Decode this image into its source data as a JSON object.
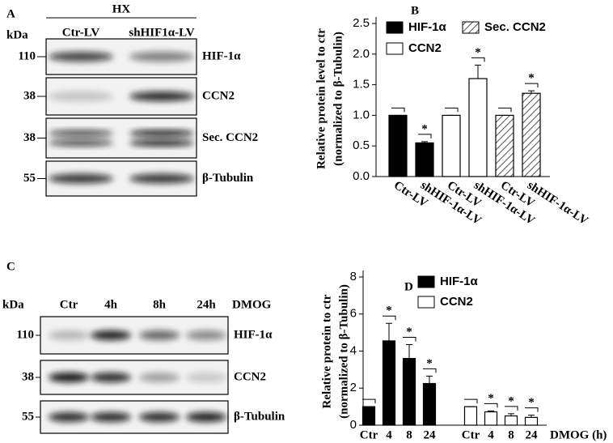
{
  "panel_a": {
    "label": "A",
    "condition": "HX",
    "kda": "kDa",
    "lanes": [
      "Ctr-LV",
      "shHIF1α-LV"
    ],
    "rows": [
      {
        "marker": "110",
        "protein": "HIF-1α"
      },
      {
        "marker": "38",
        "protein": "CCN2"
      },
      {
        "marker": "38",
        "protein": "Sec. CCN2"
      },
      {
        "marker": "55",
        "protein": "β-Tubulin"
      }
    ]
  },
  "panel_c": {
    "label": "C",
    "kda": "kDa",
    "lanes": [
      "Ctr",
      "4h",
      "8h",
      "24h"
    ],
    "treatment": "DMOG",
    "rows": [
      {
        "marker": "110",
        "protein": "HIF-1α"
      },
      {
        "marker": "38",
        "protein": "CCN2"
      },
      {
        "marker": "55",
        "protein": "β-Tubulin"
      }
    ]
  },
  "chart_data": [
    {
      "type": "bar",
      "panel": "B",
      "ylabel": [
        "Relative protein level to ctr",
        "(normalized to β-Tubulin)"
      ],
      "categories": [
        "Ctr-LV",
        "shHIF-1α-LV"
      ],
      "series": [
        {
          "name": "HIF-1α",
          "color": "#000000",
          "values": [
            1.0,
            0.55
          ],
          "errors": [
            0,
            0.02
          ],
          "significance": [
            null,
            "*"
          ]
        },
        {
          "name": "CCN2",
          "color": "#ffffff",
          "values": [
            1.0,
            1.6
          ],
          "errors": [
            0,
            0.22
          ],
          "significance": [
            null,
            "*"
          ]
        },
        {
          "name": "Sec. CCN2",
          "color": "#ffffff",
          "hatch": true,
          "values": [
            1.0,
            1.36
          ],
          "errors": [
            0,
            0.04
          ],
          "significance": [
            null,
            "*"
          ]
        }
      ],
      "ylim": [
        0,
        2.5
      ],
      "yticks": [
        {
          "value": 0,
          "label": "0.0"
        },
        {
          "value": 0.5,
          "label": "0.5"
        },
        {
          "value": 1,
          "label": "1.0"
        },
        {
          "value": 1.5,
          "label": "1.5"
        },
        {
          "value": 2,
          "label": "2.0"
        },
        {
          "value": 2.5,
          "label": "2.5"
        }
      ]
    },
    {
      "type": "bar",
      "panel": "D",
      "ylabel": [
        "Relative protein to ctr",
        "(normalized to β-Tubulin)"
      ],
      "xlabel": "DMOG (h)",
      "categories": [
        "Ctr",
        "4",
        "8",
        "24"
      ],
      "series": [
        {
          "name": "HIF-1α",
          "color": "#000000",
          "values": [
            1.0,
            4.55,
            3.6,
            2.25
          ],
          "errors": [
            0,
            0.95,
            0.75,
            0.4
          ],
          "significance": [
            null,
            "*",
            "*",
            "*"
          ]
        },
        {
          "name": "CCN2",
          "color": "#ffffff",
          "values": [
            1.0,
            0.72,
            0.5,
            0.42
          ],
          "errors": [
            0,
            0.05,
            0.12,
            0.12
          ],
          "significance": [
            null,
            "*",
            "*",
            "*"
          ]
        }
      ],
      "ylim": [
        0,
        8
      ],
      "yticks": [
        0,
        2,
        4,
        6,
        8
      ]
    }
  ]
}
